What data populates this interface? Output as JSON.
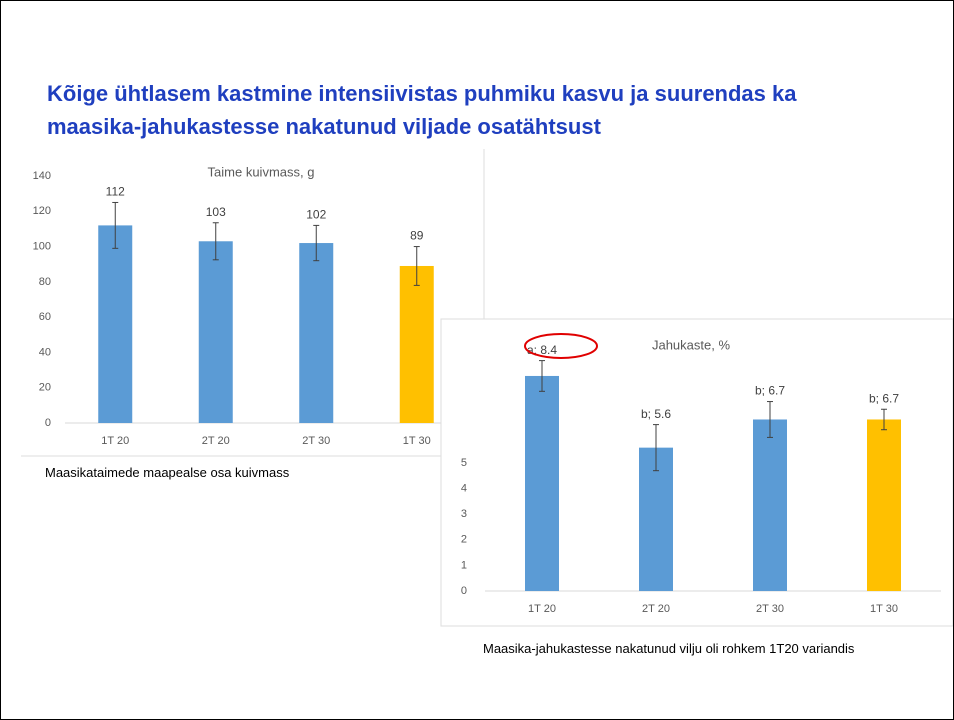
{
  "title": "Kõige ühtlasem kastmine intensiivistas puhmiku kasvu ja suurendas ka maasika-jahukastesse nakatunud viljade osatähtsust",
  "chart_data": [
    {
      "type": "bar",
      "title": "Taime kuivmass, g",
      "categories": [
        "1T 20",
        "2T 20",
        "2T 30",
        "1T 30"
      ],
      "values": [
        112,
        103,
        102,
        89
      ],
      "errors": [
        13,
        10.5,
        10,
        11
      ],
      "colors": [
        "#5b9bd5",
        "#5b9bd5",
        "#5b9bd5",
        "#ffc000"
      ],
      "ylim": [
        0,
        140
      ],
      "yticks": [
        0,
        20,
        40,
        60,
        80,
        100,
        120,
        140
      ],
      "grid": false,
      "caption": "Maasikataimede maapealse osa kuivmass"
    },
    {
      "type": "bar",
      "title": "Jahukaste, %",
      "categories": [
        "1T 20",
        "2T 20",
        "2T 30",
        "1T 30"
      ],
      "values": [
        8.4,
        5.6,
        6.7,
        6.7
      ],
      "value_labels": [
        "a; 8.4",
        "b; 5.6",
        "b; 6.7",
        "b; 6.7"
      ],
      "errors": [
        0.6,
        0.9,
        0.7,
        0.4
      ],
      "colors": [
        "#5b9bd5",
        "#5b9bd5",
        "#5b9bd5",
        "#ffc000"
      ],
      "ylim": [
        0,
        10
      ],
      "yticks": [
        0,
        1,
        2,
        3,
        4,
        5
      ],
      "grid": false,
      "caption": "Maasika-jahukastesse nakatunud vilju oli rohkem 1T20 variandis"
    }
  ]
}
